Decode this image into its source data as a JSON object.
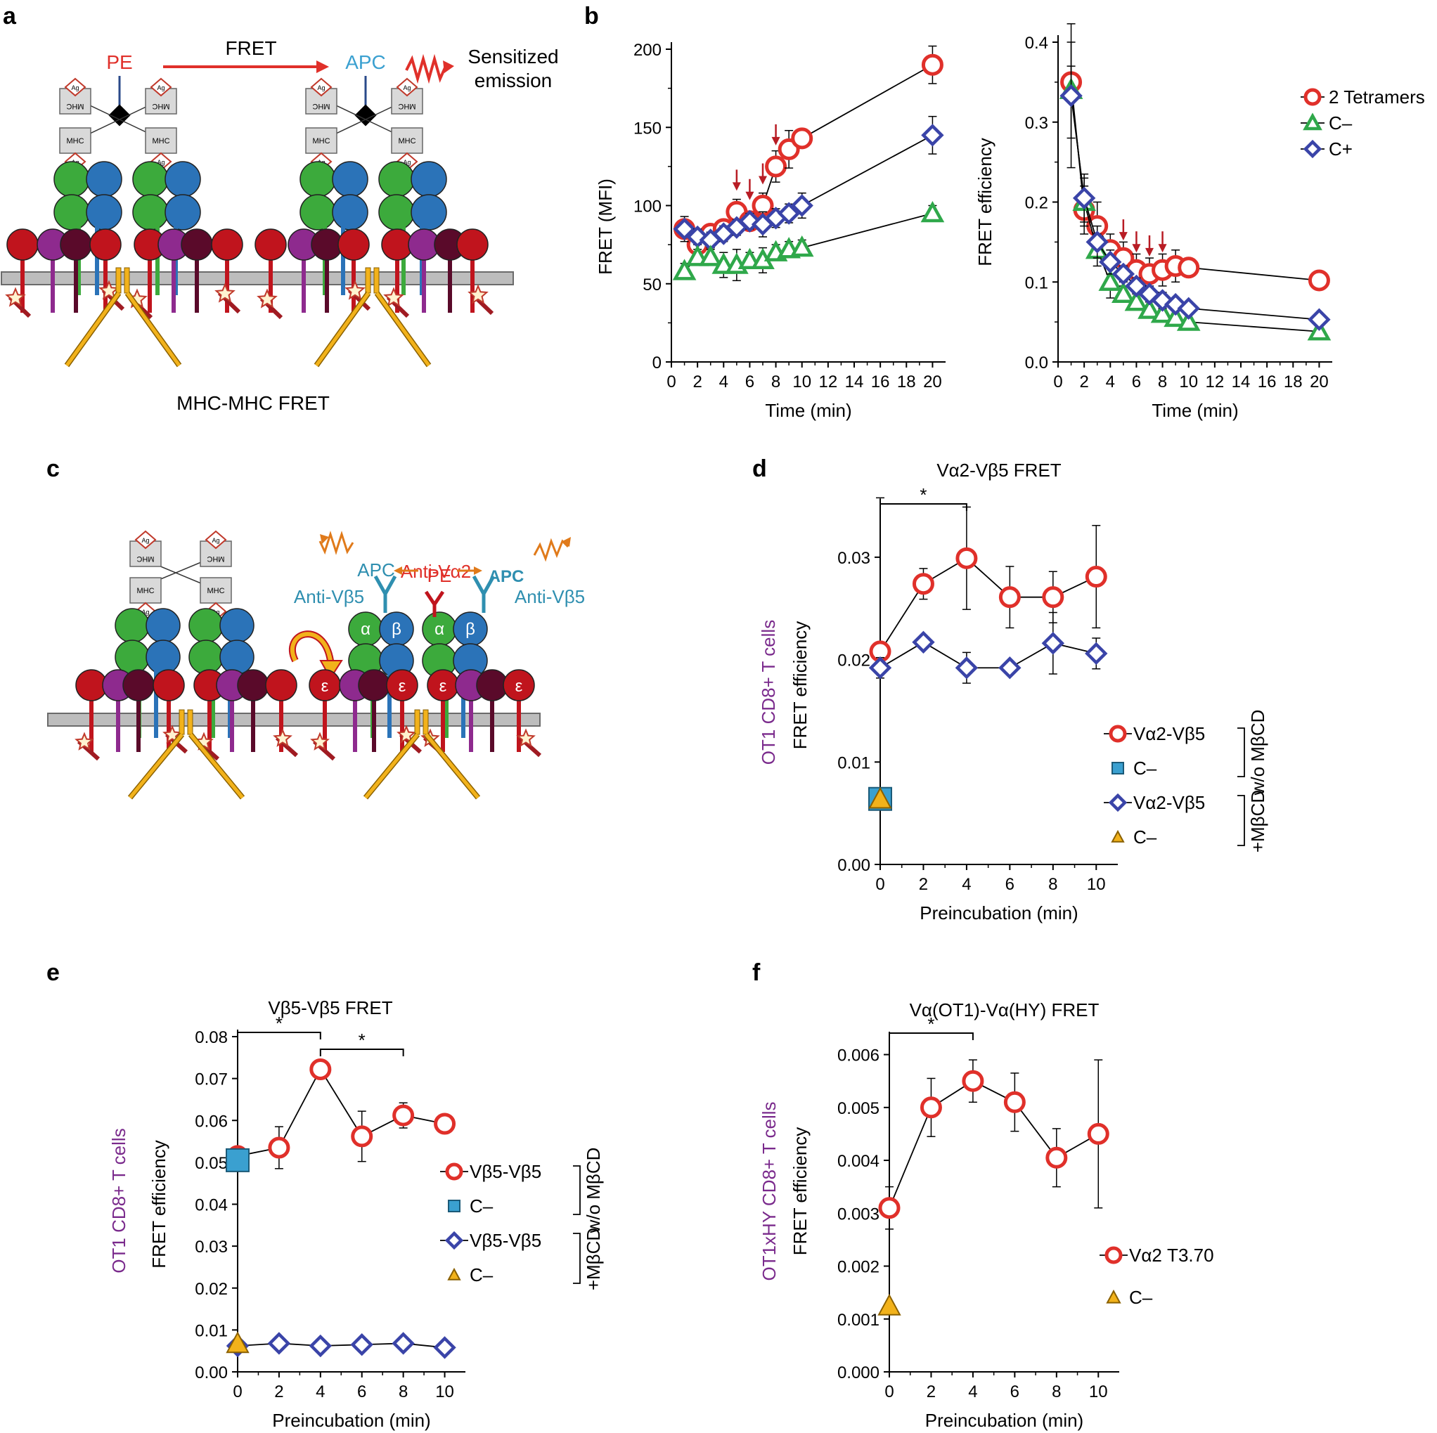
{
  "panels": {
    "a": {
      "label": "a",
      "fret": "FRET",
      "pe": "PE",
      "apc": "APC",
      "sensitized_1": "Sensitized",
      "sensitized_2": "emission",
      "caption": "MHC-MHC FRET",
      "mhc": "MHC",
      "ag": "Ag"
    },
    "b": {
      "label": "b"
    },
    "c": {
      "label": "c",
      "anti_va2": "Anti-Vα2",
      "anti_vb5_left": "Anti-Vβ5",
      "anti_vb5_right": "Anti-Vβ5",
      "apc_left": "APC",
      "apc_right": "APC",
      "pe": "PE",
      "alpha": "α",
      "beta": "β",
      "eps": "ε",
      "mhc": "MHC",
      "ag": "Ag"
    },
    "d": {
      "label": "d"
    },
    "e": {
      "label": "e"
    },
    "f": {
      "label": "f"
    }
  },
  "colors": {
    "red": "#e0302a",
    "blue": "#3a44a8",
    "green": "#2fa84a",
    "cyan": "#3aa0d0",
    "yellow": "#f2b21b",
    "purple": "#7a2a8c",
    "darkred": "#b81c24"
  },
  "chart_data": [
    {
      "panel": "b-left",
      "type": "line",
      "title": "",
      "xlabel": "Time (min)",
      "ylabel": "FRET (MFI)",
      "xlim": [
        0,
        21
      ],
      "ylim": [
        0,
        200
      ],
      "xticks": [
        0,
        2,
        4,
        6,
        8,
        10,
        12,
        14,
        16,
        18,
        20
      ],
      "yticks": [
        0,
        50,
        100,
        150,
        200
      ],
      "arrows_x": [
        5,
        6,
        7,
        8
      ],
      "series": [
        {
          "name": "2 Tetramers",
          "marker": "circle",
          "color": "#e0302a",
          "x": [
            1,
            2,
            3,
            4,
            5,
            6,
            7,
            8,
            9,
            10,
            20
          ],
          "y": [
            85,
            75,
            82,
            85,
            96,
            90,
            100,
            125,
            136,
            143,
            190
          ],
          "err": [
            5,
            5,
            5,
            5,
            8,
            5,
            8,
            10,
            12,
            5,
            12
          ]
        },
        {
          "name": "C+",
          "marker": "diamond",
          "color": "#3a44a8",
          "x": [
            1,
            2,
            3,
            4,
            5,
            6,
            7,
            8,
            9,
            10,
            20
          ],
          "y": [
            85,
            80,
            78,
            82,
            86,
            90,
            88,
            92,
            95,
            100,
            145
          ],
          "err": [
            8,
            5,
            5,
            5,
            5,
            5,
            8,
            6,
            6,
            8,
            12
          ]
        },
        {
          "name": "C−",
          "marker": "triangle",
          "color": "#2fa84a",
          "x": [
            1,
            2,
            3,
            4,
            5,
            6,
            7,
            8,
            9,
            10,
            20
          ],
          "y": [
            58,
            67,
            67,
            62,
            62,
            65,
            65,
            70,
            72,
            73,
            95
          ],
          "err": [
            5,
            5,
            5,
            8,
            10,
            5,
            8,
            5,
            5,
            5,
            5
          ]
        }
      ]
    },
    {
      "panel": "b-right",
      "type": "line",
      "title": "",
      "xlabel": "Time (min)",
      "ylabel": "FRET efficiency",
      "xlim": [
        0,
        21
      ],
      "ylim": [
        0,
        0.4
      ],
      "xticks": [
        0,
        2,
        4,
        6,
        8,
        10,
        12,
        14,
        16,
        18,
        20
      ],
      "yticks": [
        "0.0",
        "0.1",
        "0.2",
        "0.3",
        "0.4"
      ],
      "arrows_x": [
        5,
        6,
        7,
        8
      ],
      "legend": [
        "2 Tetramers",
        "C–",
        "C+"
      ],
      "series": [
        {
          "name": "2 Tetramers",
          "marker": "circle",
          "color": "#e0302a",
          "x": [
            1,
            2,
            3,
            4,
            5,
            6,
            7,
            8,
            9,
            10,
            20
          ],
          "y": [
            0.35,
            0.19,
            0.17,
            0.14,
            0.13,
            0.115,
            0.11,
            0.115,
            0.12,
            0.118,
            0.102
          ],
          "err": [
            0.02,
            0.03,
            0.03,
            0.02,
            0.02,
            0.02,
            0.02,
            0.02,
            0.02,
            0.01,
            0.005
          ]
        },
        {
          "name": "C–",
          "marker": "triangle",
          "color": "#2fa84a",
          "x": [
            1,
            2,
            3,
            4,
            5,
            6,
            7,
            8,
            9,
            10,
            20
          ],
          "y": [
            0.34,
            0.2,
            0.14,
            0.1,
            0.085,
            0.075,
            0.065,
            0.06,
            0.055,
            0.05,
            0.038
          ],
          "err": [
            0.06,
            0.03,
            0.02,
            0.02,
            0.01,
            0.01,
            0.01,
            0.01,
            0.01,
            0.005,
            0.005
          ]
        },
        {
          "name": "C+",
          "marker": "diamond",
          "color": "#3a44a8",
          "x": [
            1,
            2,
            3,
            4,
            5,
            6,
            7,
            8,
            9,
            10,
            20
          ],
          "y": [
            0.333,
            0.205,
            0.15,
            0.125,
            0.11,
            0.095,
            0.085,
            0.077,
            0.072,
            0.067,
            0.053
          ],
          "err": [
            0.09,
            0.03,
            0.02,
            0.015,
            0.01,
            0.01,
            0.01,
            0.01,
            0.008,
            0.005,
            0.005
          ]
        }
      ]
    },
    {
      "panel": "d",
      "type": "line",
      "title": "Vα2-Vβ5 FRET",
      "xlabel": "Preincubation (min)",
      "ylabel": "FRET efficiency",
      "ylabel2": "OT1 CD8+ T cells",
      "xlim": [
        0,
        11
      ],
      "ylim": [
        0,
        0.035
      ],
      "xticks": [
        0,
        2,
        4,
        6,
        8,
        10
      ],
      "yticks": [
        "0.00",
        "0.01",
        "0.02",
        "0.03"
      ],
      "significance": [
        {
          "x1": 0,
          "x2": 4,
          "label": "*"
        }
      ],
      "group_labels": [
        "w/o MβCD",
        "+MβCD"
      ],
      "legend": [
        "Vα2-Vβ5",
        "C–",
        "Vα2-Vβ5",
        "C–"
      ],
      "series": [
        {
          "name": "Vα2-Vβ5",
          "group": "w/o MβCD",
          "marker": "circle",
          "color": "#e0302a",
          "x": [
            0,
            2,
            4,
            6,
            8,
            10
          ],
          "y": [
            0.0208,
            0.0274,
            0.0299,
            0.0261,
            0.0261,
            0.0281
          ],
          "err": [
            0.015,
            0.0015,
            0.005,
            0.003,
            0.0025,
            0.005
          ]
        },
        {
          "name": "C–",
          "group": "w/o MβCD",
          "marker": "square",
          "color": "#3aa0d0",
          "x": [
            0
          ],
          "y": [
            0.0064
          ]
        },
        {
          "name": "Vα2-Vβ5",
          "group": "+MβCD",
          "marker": "diamond",
          "color": "#3a44a8",
          "x": [
            0,
            2,
            4,
            6,
            8,
            10
          ],
          "y": [
            0.0192,
            0.0217,
            0.0192,
            0.0192,
            0.0216,
            0.0206
          ],
          "err": [
            0.001,
            0.0005,
            0.0015,
            0.0005,
            0.003,
            0.0015
          ]
        },
        {
          "name": "C–",
          "group": "+MβCD",
          "marker": "triangle",
          "color": "#f2b21b",
          "x": [
            0
          ],
          "y": [
            0.0064
          ]
        }
      ]
    },
    {
      "panel": "e",
      "type": "line",
      "title": "Vβ5-Vβ5 FRET",
      "xlabel": "Preincubation (min)",
      "ylabel": "FRET efficiency",
      "ylabel2": "OT1 CD8+ T cells",
      "xlim": [
        0,
        11
      ],
      "ylim": [
        0,
        0.08
      ],
      "xticks": [
        0,
        2,
        4,
        6,
        8,
        10
      ],
      "yticks": [
        "0.00",
        "0.01",
        "0.02",
        "0.03",
        "0.04",
        "0.05",
        "0.06",
        "0.07",
        "0.08"
      ],
      "significance": [
        {
          "x1": 0,
          "x2": 4,
          "label": "*"
        },
        {
          "x1": 4,
          "x2": 8,
          "label": "*"
        }
      ],
      "group_labels": [
        "w/o MβCD",
        "+MβCD"
      ],
      "legend": [
        "Vβ5-Vβ5",
        "C–",
        "Vβ5-Vβ5",
        "C–"
      ],
      "series": [
        {
          "name": "Vβ5-Vβ5",
          "group": "w/o MβCD",
          "marker": "circle",
          "color": "#e0302a",
          "x": [
            0,
            2,
            4,
            6,
            8,
            10
          ],
          "y": [
            0.0515,
            0.0535,
            0.0722,
            0.0562,
            0.0612,
            0.0592
          ],
          "err": [
            0.002,
            0.005,
            0.001,
            0.006,
            0.003,
            0.001
          ]
        },
        {
          "name": "C–",
          "group": "w/o MβCD",
          "marker": "square",
          "color": "#3aa0d0",
          "x": [
            0
          ],
          "y": [
            0.0505
          ]
        },
        {
          "name": "Vβ5-Vβ5",
          "group": "+MβCD",
          "marker": "diamond",
          "color": "#3a44a8",
          "x": [
            0,
            2,
            4,
            6,
            8,
            10
          ],
          "y": [
            0.0062,
            0.0068,
            0.0062,
            0.0065,
            0.0068,
            0.0058
          ],
          "err": [
            0.001,
            0.001,
            0.001,
            0.001,
            0.001,
            0.001
          ]
        },
        {
          "name": "C–",
          "group": "+MβCD",
          "marker": "triangle",
          "color": "#f2b21b",
          "x": [
            0
          ],
          "y": [
            0.0068
          ]
        }
      ]
    },
    {
      "panel": "f",
      "type": "line",
      "title": "Vα(OT1)-Vα(HY) FRET",
      "xlabel": "Preincubation (min)",
      "ylabel": "FRET efficiency",
      "ylabel2": "OT1xHY CD8+ T cells",
      "xlim": [
        0,
        11
      ],
      "ylim": [
        0,
        0.0063
      ],
      "xticks": [
        0,
        2,
        4,
        6,
        8,
        10
      ],
      "yticks": [
        "0.000",
        "0.001",
        "0.002",
        "0.003",
        "0.004",
        "0.005",
        "0.006"
      ],
      "significance": [
        {
          "x1": 0,
          "x2": 4,
          "label": "*"
        }
      ],
      "legend": [
        "Vα2 T3.70",
        "C–"
      ],
      "series": [
        {
          "name": "Vα2 T3.70",
          "marker": "circle",
          "color": "#e0302a",
          "x": [
            0,
            2,
            4,
            6,
            8,
            10
          ],
          "y": [
            0.0031,
            0.005,
            0.0055,
            0.0051,
            0.00405,
            0.0045
          ],
          "err": [
            0.0004,
            0.00055,
            0.0004,
            0.00055,
            0.00055,
            0.0014
          ]
        },
        {
          "name": "C–",
          "marker": "triangle",
          "color": "#f2b21b",
          "x": [
            0
          ],
          "y": [
            0.00125
          ]
        }
      ]
    }
  ]
}
